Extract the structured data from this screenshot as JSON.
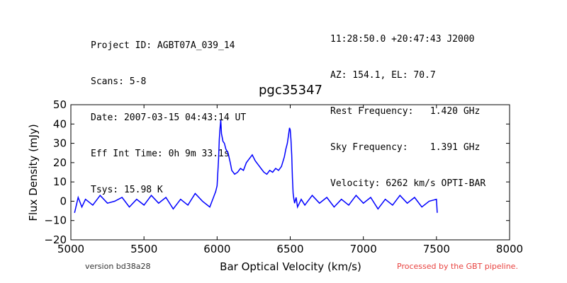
{
  "header": {
    "left_lines": [
      "Project ID: AGBT07A_039_14",
      "Scans: 5-8",
      "Date: 2007-03-15 04:43:14 UT",
      "Eff Int Time: 0h 9m 33.1s",
      "Tsys: 15.98 K"
    ],
    "right_lines": [
      "11:28:50.0 +20:47:43 J2000",
      "AZ: 154.1, EL: 70.7",
      "Rest Frequency:   1.420 GHz",
      "Sky Frequency:    1.391 GHz",
      "Velocity: 6262 km/s OPTI-BAR"
    ]
  },
  "footer": {
    "version": "version bd38a28",
    "processed": "Processed by the GBT pipeline.",
    "processed_color": "#e8423f"
  },
  "chart_data": {
    "type": "line",
    "title": "pgc35347",
    "xlabel": "Bar Optical Velocity (km/s)",
    "ylabel": "Flux Density (mJy)",
    "xlim": [
      5000,
      8000
    ],
    "ylim": [
      -20,
      50
    ],
    "xticks": [
      "5000",
      "5500",
      "6000",
      "6500",
      "7000",
      "7500",
      "8000"
    ],
    "yticks": [
      "−20",
      "−10",
      "0",
      "10",
      "20",
      "30",
      "40",
      "50"
    ],
    "grid": false,
    "line_color": "#0000ff",
    "series": [
      {
        "x": [
          5025,
          5050,
          5075,
          5100,
          5150,
          5200,
          5250,
          5300,
          5350,
          5400,
          5450,
          5500,
          5550,
          5600,
          5650,
          5700,
          5750,
          5800,
          5850,
          5900,
          5950,
          5975,
          5990,
          6000,
          6010,
          6015,
          6020,
          6025,
          6030,
          6040,
          6050,
          6060,
          6075,
          6090,
          6100,
          6120,
          6140,
          6160,
          6180,
          6200,
          6220,
          6240,
          6260,
          6280,
          6300,
          6320,
          6340,
          6360,
          6380,
          6400,
          6420,
          6440,
          6460,
          6470,
          6480,
          6490,
          6495,
          6500,
          6505,
          6510,
          6515,
          6520,
          6525,
          6530,
          6540,
          6550,
          6575,
          6600,
          6650,
          6700,
          6750,
          6800,
          6850,
          6900,
          6950,
          7000,
          7050,
          7100,
          7150,
          7200,
          7250,
          7300,
          7350,
          7400,
          7450,
          7500,
          7505
        ],
        "y": [
          -6,
          2,
          -3,
          1,
          -2,
          3,
          -1,
          0,
          2,
          -3,
          1,
          -2,
          3,
          -1,
          2,
          -4,
          1,
          -2,
          4,
          0,
          -3,
          2,
          5,
          8,
          22,
          32,
          38,
          42,
          35,
          31,
          30,
          27,
          25,
          20,
          16,
          14,
          15,
          17,
          16,
          20,
          22,
          24,
          21,
          19,
          17,
          15,
          14,
          16,
          15,
          17,
          16,
          18,
          23,
          27,
          30,
          35,
          38,
          37,
          32,
          24,
          12,
          4,
          1,
          -1,
          2,
          -3,
          1,
          -2,
          3,
          -1,
          2,
          -3,
          1,
          -2,
          3,
          -1,
          2,
          -4,
          1,
          -2,
          3,
          -1,
          2,
          -3,
          0,
          1,
          -6
        ]
      }
    ]
  }
}
